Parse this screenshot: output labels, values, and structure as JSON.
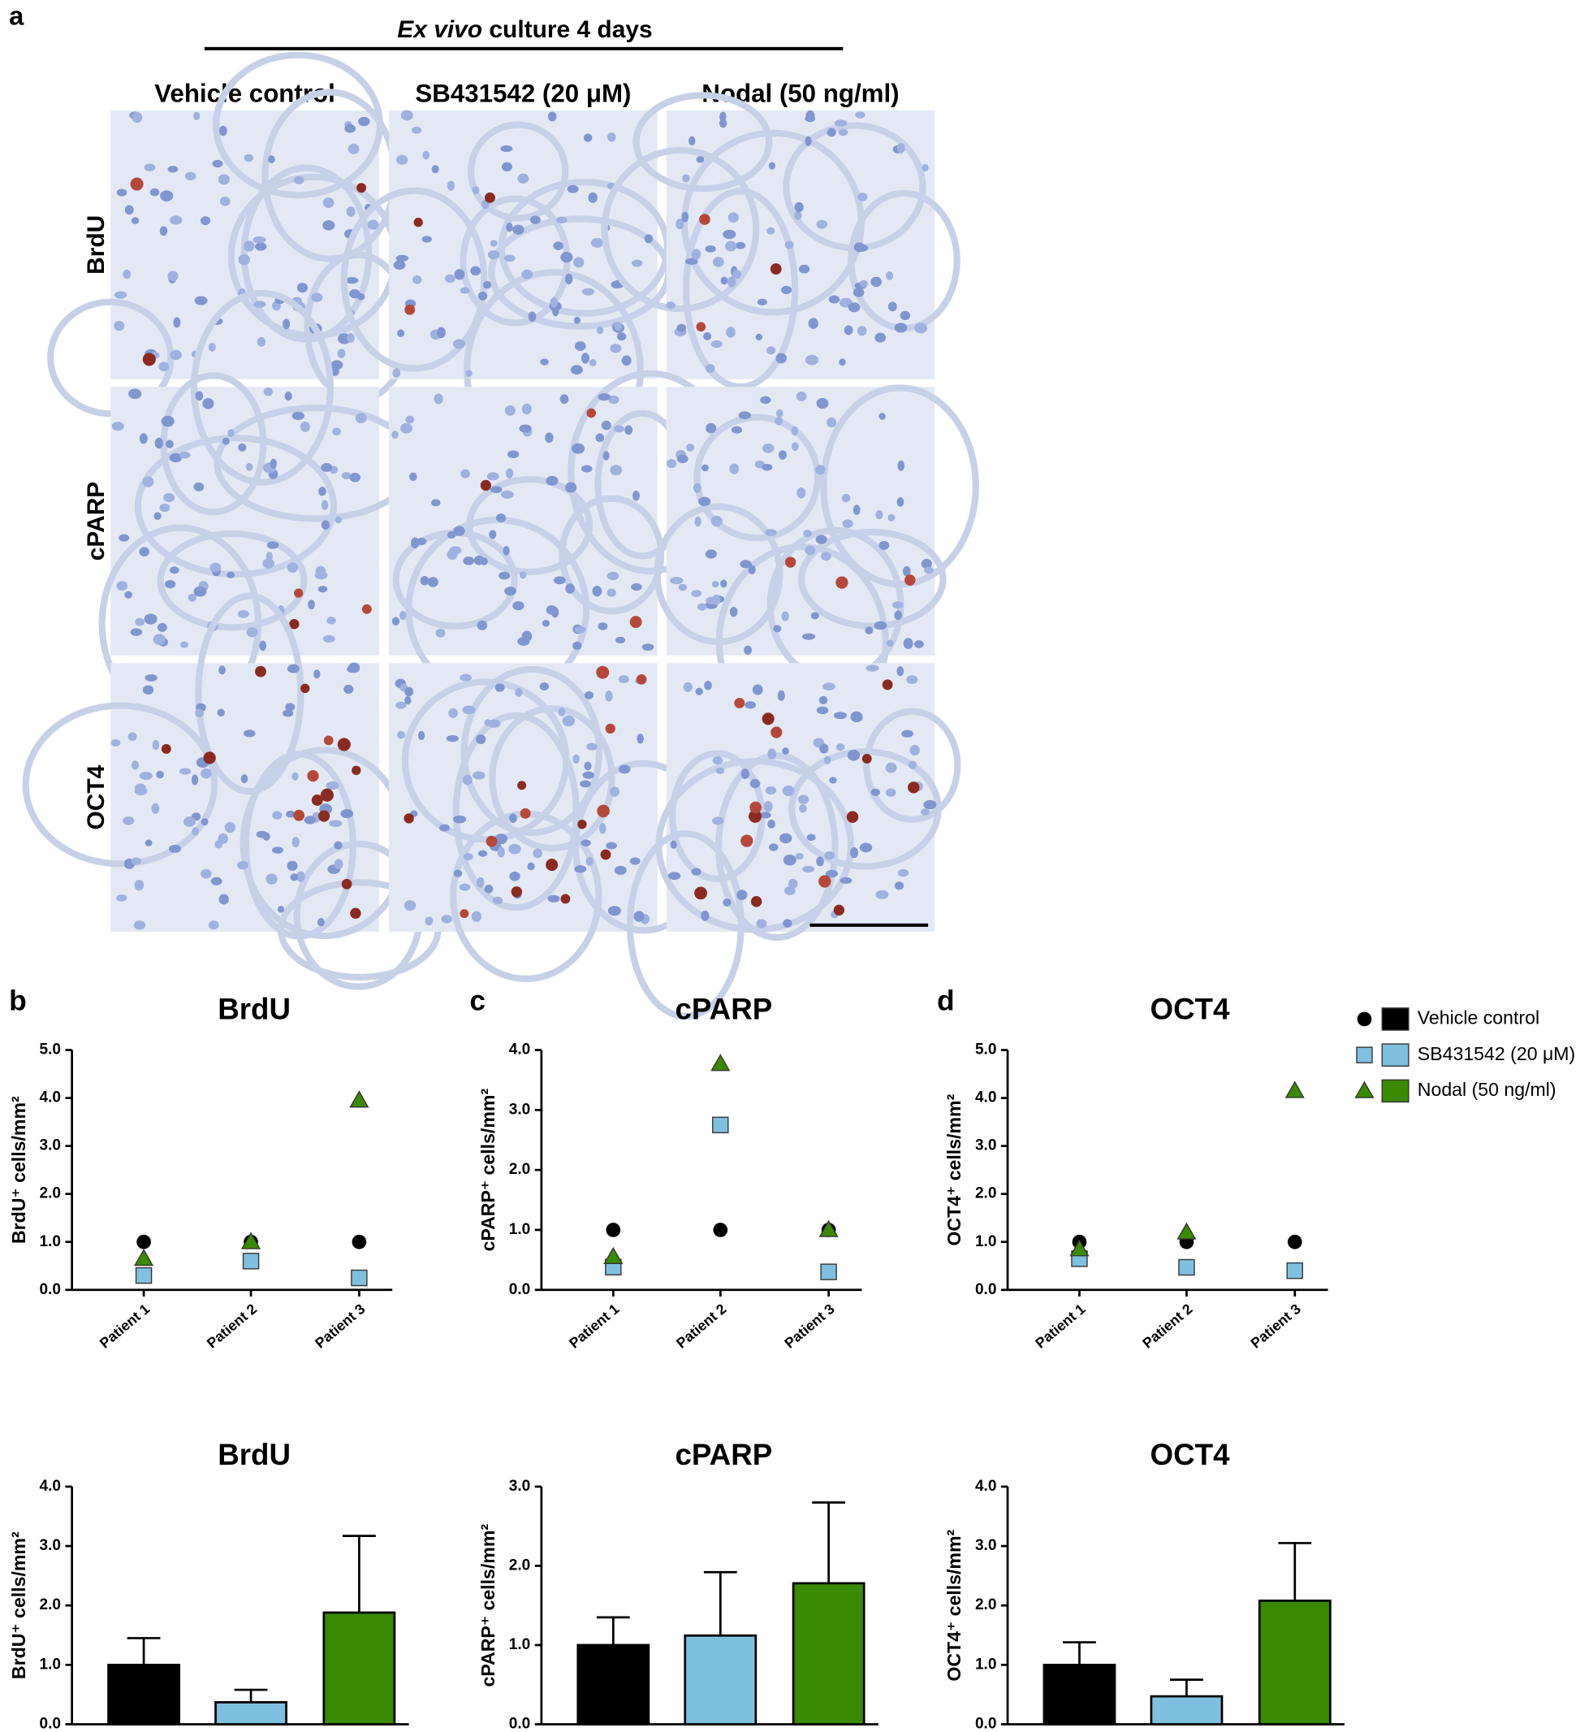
{
  "panel_labels": [
    "a",
    "b",
    "c",
    "d"
  ],
  "micrograph": {
    "title_italic": "Ex vivo",
    "title_rest": "culture 4 days",
    "columns": [
      "Vehicle control",
      "SB431542 (20 μM)",
      "Nodal (50 ng/ml)"
    ],
    "rows": [
      "BrdU",
      "cPARP",
      "OCT4"
    ]
  },
  "chart_data": [
    {
      "type": "scatter",
      "title": "BrdU",
      "y_label": "BrdU⁺ cells/mm²",
      "categories": [
        "Patient 1",
        "Patient 2",
        "Patient 3"
      ],
      "ylim": [
        0,
        5
      ],
      "yticks": [
        {
          "value": 0,
          "label": "0.0"
        },
        {
          "value": 1,
          "label": "1.0"
        },
        {
          "value": 2,
          "label": "2.0"
        },
        {
          "value": 3,
          "label": "3.0"
        },
        {
          "value": 4,
          "label": "4.0"
        },
        {
          "value": 5,
          "label": "5.0"
        }
      ],
      "series": [
        {
          "color": "#000000",
          "marker": "circle",
          "values": [
            1.0,
            1.0,
            1.0
          ]
        },
        {
          "color": "#7fbfdf",
          "marker": "square",
          "values": [
            0.3,
            0.6,
            0.25
          ]
        },
        {
          "color": "#3a8a00",
          "marker": "triangle",
          "values": [
            0.65,
            1.0,
            3.95
          ]
        }
      ]
    },
    {
      "type": "scatter",
      "title": "cPARP",
      "y_label": "cPARP⁺ cells/mm²",
      "categories": [
        "Patient 1",
        "Patient 2",
        "Patient 3"
      ],
      "ylim": [
        0,
        4
      ],
      "yticks": [
        {
          "value": 0,
          "label": "0.0"
        },
        {
          "value": 1,
          "label": "1.0"
        },
        {
          "value": 2,
          "label": "2.0"
        },
        {
          "value": 3,
          "label": "3.0"
        },
        {
          "value": 4,
          "label": "4.0"
        }
      ],
      "series": [
        {
          "color": "#000000",
          "marker": "circle",
          "values": [
            1.0,
            1.0,
            1.0
          ]
        },
        {
          "color": "#7fbfdf",
          "marker": "square",
          "values": [
            0.38,
            2.75,
            0.3
          ]
        },
        {
          "color": "#3a8a00",
          "marker": "triangle",
          "values": [
            0.55,
            3.77,
            1.0
          ]
        }
      ]
    },
    {
      "type": "scatter",
      "title": "OCT4",
      "y_label": "OCT4⁺ cells/mm²",
      "categories": [
        "Patient 1",
        "Patient 2",
        "Patient 3"
      ],
      "ylim": [
        0,
        5
      ],
      "yticks": [
        {
          "value": 0,
          "label": "0.0"
        },
        {
          "value": 1,
          "label": "1.0"
        },
        {
          "value": 2,
          "label": "2.0"
        },
        {
          "value": 3,
          "label": "3.0"
        },
        {
          "value": 4,
          "label": "4.0"
        },
        {
          "value": 5,
          "label": "5.0"
        }
      ],
      "series": [
        {
          "name": "Vehicle control",
          "color": "#000000",
          "marker": "circle",
          "values": [
            1.0,
            1.0,
            1.0
          ]
        },
        {
          "name": "SB431542 (20 μM)",
          "color": "#7fbfdf",
          "marker": "square",
          "values": [
            0.65,
            0.47,
            0.4
          ]
        },
        {
          "name": "Nodal (50 ng/ml)",
          "color": "#3a8a00",
          "marker": "triangle",
          "values": [
            0.85,
            1.2,
            4.15
          ]
        }
      ]
    },
    {
      "type": "bar",
      "title": "BrdU",
      "y_label": "BrdU⁺ cells/mm²",
      "colors": [
        "#000000",
        "#7fbfdf",
        "#3a8a00"
      ],
      "values": [
        1.0,
        0.37,
        1.88
      ],
      "errors": [
        0.45,
        0.21,
        1.29
      ],
      "ylim": [
        0,
        4
      ],
      "yticks": [
        {
          "value": 0,
          "label": "0.0"
        },
        {
          "value": 1,
          "label": "1.0"
        },
        {
          "value": 2,
          "label": "2.0"
        },
        {
          "value": 3,
          "label": "3.0"
        },
        {
          "value": 4,
          "label": "4.0"
        }
      ]
    },
    {
      "type": "bar",
      "title": "cPARP",
      "y_label": "cPARP⁺ cells/mm²",
      "colors": [
        "#000000",
        "#7fbfdf",
        "#3a8a00"
      ],
      "values": [
        1.0,
        1.12,
        1.78
      ],
      "errors": [
        0.35,
        0.8,
        1.02
      ],
      "ylim": [
        0,
        3
      ],
      "yticks": [
        {
          "value": 0,
          "label": "0.0"
        },
        {
          "value": 1,
          "label": "1.0"
        },
        {
          "value": 2,
          "label": "2.0"
        },
        {
          "value": 3,
          "label": "3.0"
        }
      ]
    },
    {
      "type": "bar",
      "title": "OCT4",
      "y_label": "OCT4⁺ cells/mm²",
      "colors": [
        "#000000",
        "#7fbfdf",
        "#3a8a00"
      ],
      "values": [
        1.0,
        0.47,
        2.08
      ],
      "errors": [
        0.38,
        0.28,
        0.97
      ],
      "ylim": [
        0,
        4
      ],
      "yticks": [
        {
          "value": 0,
          "label": "0.0"
        },
        {
          "value": 1,
          "label": "1.0"
        },
        {
          "value": 2,
          "label": "2.0"
        },
        {
          "value": 3,
          "label": "3.0"
        },
        {
          "value": 4,
          "label": "4.0"
        }
      ]
    }
  ]
}
